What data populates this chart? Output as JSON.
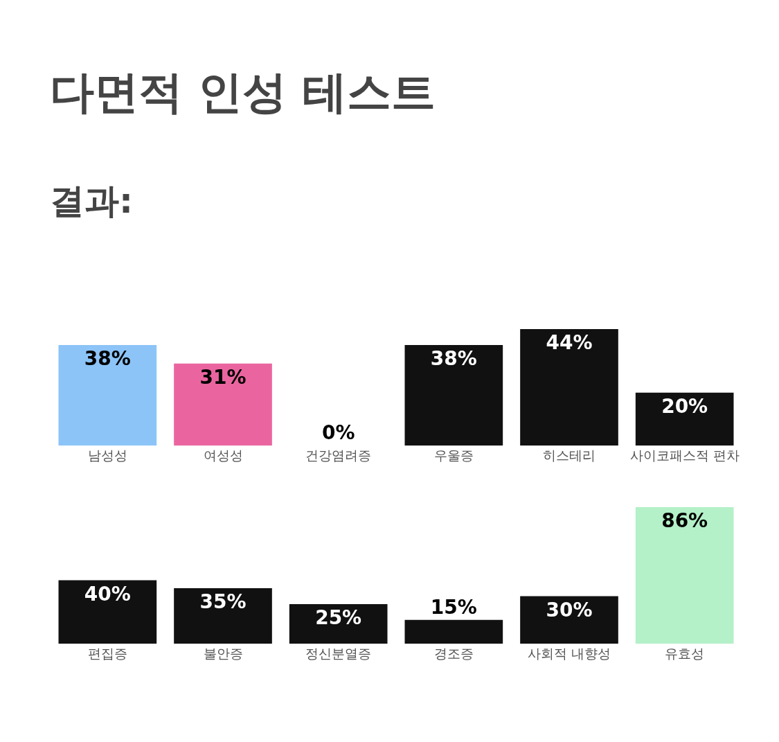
{
  "chart_data": [
    {
      "type": "bar",
      "title": "다면적 인성 테스트",
      "subtitle": "결과:",
      "categories": [
        "남성성",
        "여성성",
        "건강염려증",
        "우울증",
        "히스테리",
        "사이코패스적 편차"
      ],
      "values": [
        38,
        31,
        0,
        38,
        44,
        20
      ],
      "value_labels": [
        "38%",
        "31%",
        "0%",
        "38%",
        "44%",
        "20%"
      ],
      "colors": [
        "#8cc4f8",
        "#ea659f",
        "#111111",
        "#111111",
        "#111111",
        "#111111"
      ],
      "grid": false,
      "tick_labels": "x",
      "legend": false
    },
    {
      "type": "bar",
      "categories": [
        "편집증",
        "불안증",
        "정신분열증",
        "경조증",
        "사회적 내향성",
        "유효성"
      ],
      "values": [
        40,
        35,
        25,
        15,
        30,
        86
      ],
      "value_labels": [
        "40%",
        "35%",
        "25%",
        "15%",
        "30%",
        "86%"
      ],
      "colors": [
        "#111111",
        "#111111",
        "#111111",
        "#111111",
        "#111111",
        "#b4f0c8"
      ],
      "grid": false,
      "tick_labels": "x",
      "legend": false
    }
  ]
}
